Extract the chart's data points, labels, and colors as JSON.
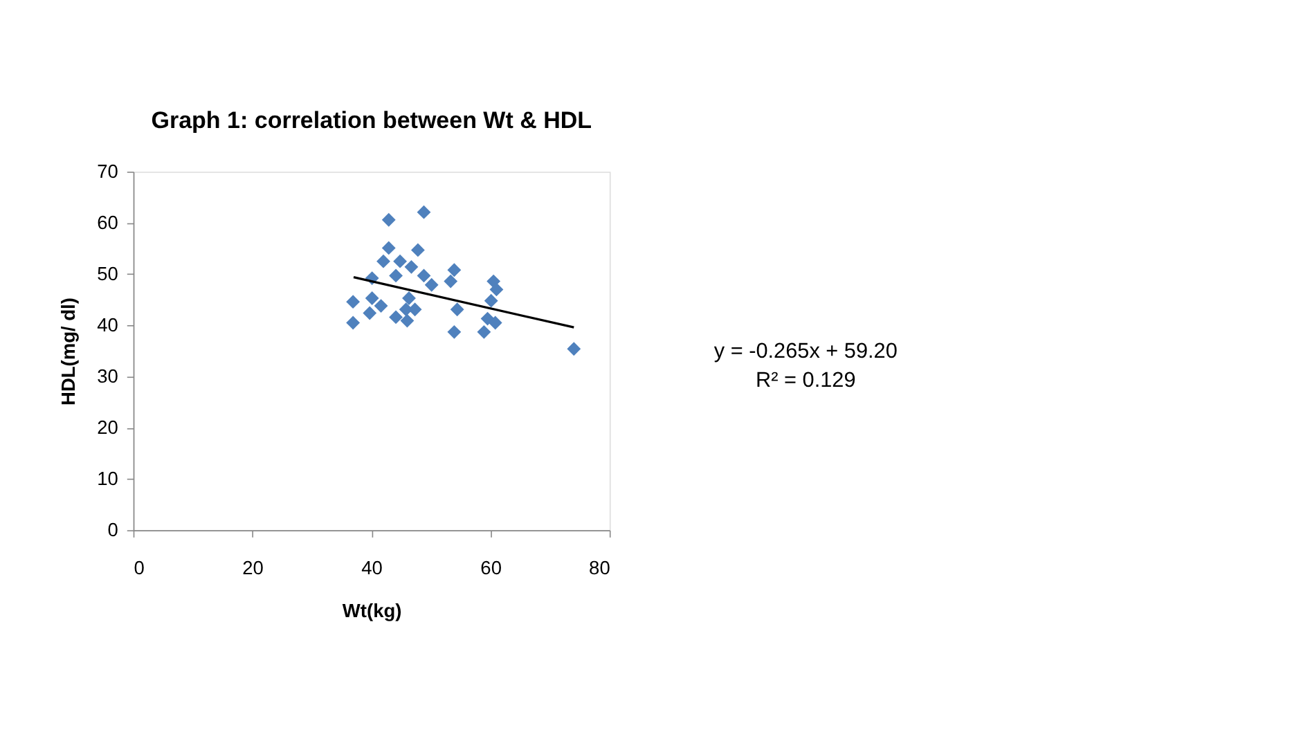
{
  "chart_data": {
    "type": "scatter",
    "title": "Graph 1: correlation between Wt & HDL",
    "xlabel": "Wt(kg)",
    "ylabel": "HDL(mg/ dl)",
    "xlim": [
      0,
      80
    ],
    "xticks": [
      0,
      20,
      40,
      60,
      80
    ],
    "ylim": [
      0,
      70
    ],
    "yticks": [
      0,
      10,
      20,
      30,
      40,
      50,
      60,
      70
    ],
    "grid": false,
    "series": [
      {
        "marker": "diamond",
        "color": "#4f81bd",
        "x": [
          42.9,
          48.8,
          42.9,
          47.8,
          42.0,
          44.8,
          46.7,
          48.8,
          53.9,
          53.3,
          40.1,
          44.1,
          50.1,
          60.5,
          61.0,
          36.9,
          40.1,
          41.6,
          46.3,
          45.8,
          54.4,
          60.1,
          36.9,
          39.7,
          44.1,
          46.0,
          53.9,
          59.5,
          58.9,
          60.8,
          47.3,
          74.0
        ],
        "values": [
          60.6,
          62.1,
          55.1,
          54.7,
          52.5,
          52.5,
          51.4,
          49.7,
          50.8,
          48.6,
          49.2,
          49.7,
          47.9,
          48.6,
          47.0,
          44.6,
          45.3,
          43.8,
          45.3,
          43.1,
          43.1,
          44.8,
          40.5,
          42.4,
          41.6,
          40.9,
          38.7,
          41.3,
          38.7,
          40.5,
          43.1,
          35.4
        ]
      },
      {
        "type": "line",
        "color": "#000000",
        "x": [
          37,
          74
        ],
        "values": [
          49.4,
          39.6
        ]
      }
    ],
    "annotations": [
      "y = -0.265x + 59.20",
      "R² = 0.129"
    ]
  }
}
